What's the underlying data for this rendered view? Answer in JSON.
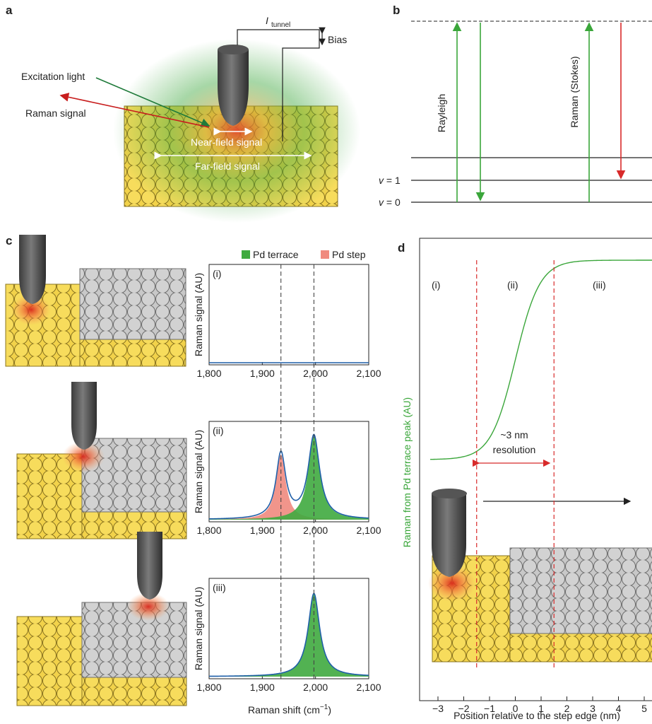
{
  "panels": {
    "a": {
      "label": "a",
      "tunnel_label": "I",
      "tunnel_sub": "tunnel",
      "bias": "Bias",
      "excitation": "Excitation light",
      "raman_signal": "Raman signal",
      "near_field": "Near-field signal",
      "far_field": "Far-field signal"
    },
    "b": {
      "label": "b",
      "rayleigh": "Rayleigh",
      "raman_stokes": "Raman (Stokes)",
      "v1_label": "v",
      "v1_value": " = 1",
      "v0_label": "v",
      "v0_value": " = 0"
    },
    "c": {
      "label": "c",
      "legend": [
        {
          "name": "Pd terrace",
          "color": "#3faa3f"
        },
        {
          "name": "Pd step",
          "color": "#f08a7e"
        }
      ],
      "ylabel": "Raman signal (AU)",
      "xlabel": "Raman shift (cm",
      "xlabel_sup": "−1",
      "xlabel_tail": ")",
      "xticks": [
        "1,800",
        "1,900",
        "2,000",
        "2,100"
      ],
      "subplots": [
        "(i)",
        "(ii)",
        "(iii)"
      ]
    },
    "d": {
      "label": "d",
      "regions": [
        "(i)",
        "(ii)",
        "(iii)"
      ],
      "resolution_line1": "~3 nm",
      "resolution_line2": "resolution",
      "ylabel": "Raman from Pd terrace peak (AU)",
      "xlabel": "Position relative to the step edge (nm)",
      "xticks": [
        "−3",
        "−2",
        "−1",
        "0",
        "1",
        "2",
        "3",
        "4",
        "5"
      ]
    }
  },
  "chart_data": [
    {
      "type": "line",
      "title": "(i)",
      "xlabel": "",
      "ylabel": "Raman signal (AU)",
      "xlim": [
        1800,
        2100
      ],
      "x": [
        1800,
        2100
      ],
      "series": [
        {
          "name": "",
          "values": [
            0,
            0
          ]
        }
      ],
      "vlines": [
        1935,
        1997
      ]
    },
    {
      "type": "area",
      "title": "(ii)",
      "xlabel": "",
      "ylabel": "Raman signal (AU)",
      "xlim": [
        1800,
        2100
      ],
      "peaks": [
        {
          "name": "Pd step",
          "center": 1935,
          "height": 0.72,
          "hwhm": 11
        },
        {
          "name": "Pd terrace",
          "center": 1997,
          "height": 0.92,
          "hwhm": 13
        }
      ],
      "vlines": [
        1935,
        1997
      ]
    },
    {
      "type": "area",
      "title": "(iii)",
      "xlabel": "Raman shift (cm−1)",
      "ylabel": "Raman signal (AU)",
      "xlim": [
        1800,
        2100
      ],
      "peaks": [
        {
          "name": "Pd terrace",
          "center": 1997,
          "height": 0.92,
          "hwhm": 13
        }
      ],
      "vlines": [
        1935,
        1997
      ]
    },
    {
      "type": "line",
      "title": "",
      "xlabel": "Position relative to the step edge (nm)",
      "ylabel": "Raman from Pd terrace peak (AU)",
      "xlim": [
        -3.3,
        5.4
      ],
      "x": [
        -3.3,
        -2.5,
        -2.0,
        -1.5,
        -1.0,
        -0.5,
        0.0,
        0.5,
        1.0,
        1.5,
        2.0,
        2.5,
        3.0,
        4.0,
        5.4
      ],
      "series": [
        {
          "name": "",
          "values": [
            0.0,
            0.005,
            0.02,
            0.06,
            0.16,
            0.32,
            0.5,
            0.68,
            0.84,
            0.94,
            0.98,
            0.995,
            1.0,
            1.0,
            1.0
          ]
        }
      ],
      "markers": [
        -1.5,
        1.5
      ]
    }
  ]
}
